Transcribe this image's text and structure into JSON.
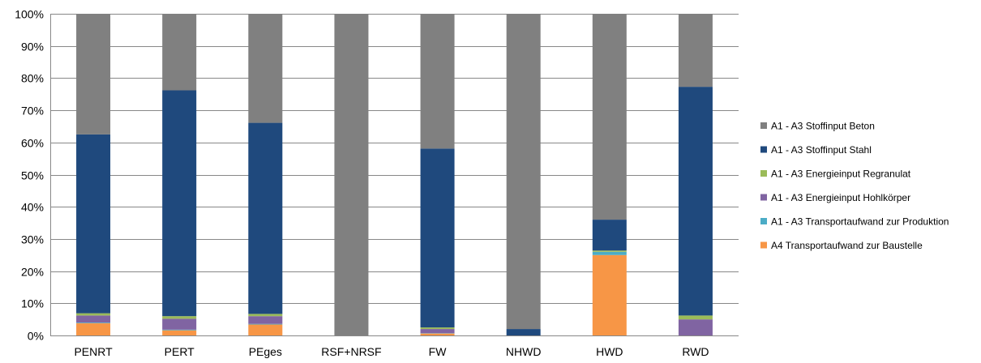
{
  "chart_data": {
    "type": "bar",
    "stacked": true,
    "percent": true,
    "categories": [
      "PENRT",
      "PERT",
      "PEges",
      "RSF+NRSF",
      "FW",
      "NHWD",
      "HWD",
      "RWD"
    ],
    "ylim": [
      0,
      100
    ],
    "yticks": [
      "0%",
      "10%",
      "20%",
      "30%",
      "40%",
      "50%",
      "60%",
      "70%",
      "80%",
      "90%",
      "100%"
    ],
    "grid": true,
    "legend_position": "right",
    "series": [
      {
        "name": "A4 Transportaufwand zur Baustelle",
        "color": "#F79646",
        "values": [
          3.8,
          1.6,
          3.4,
          0,
          0.6,
          0,
          25.0,
          0
        ]
      },
      {
        "name": "A1 - A3 Transportaufwand zur Produktion",
        "color": "#4BACC6",
        "values": [
          0.2,
          0.2,
          0.2,
          0,
          0.1,
          0,
          1.0,
          0
        ]
      },
      {
        "name": "A1 - A3 Energieinput Hohlkörper",
        "color": "#8064A2",
        "values": [
          2.2,
          3.4,
          2.4,
          0,
          1.3,
          0,
          0,
          5.0
        ]
      },
      {
        "name": "A1 - A3 Energieinput Regranulat",
        "color": "#9BBB59",
        "values": [
          0.7,
          0.8,
          0.7,
          0,
          0.5,
          0,
          0.4,
          1.2
        ]
      },
      {
        "name": "A1 - A3 Stoffinput Stahl",
        "color": "#1F497D",
        "values": [
          55.6,
          70.2,
          59.4,
          0,
          55.6,
          2.0,
          9.6,
          71.1
        ]
      },
      {
        "name": "A1 - A3 Stoffinput Beton",
        "color": "#808080",
        "values": [
          37.5,
          23.8,
          33.9,
          100,
          41.9,
          98.0,
          64.0,
          22.7
        ]
      }
    ],
    "legend_order": [
      5,
      4,
      3,
      2,
      1,
      0
    ]
  }
}
